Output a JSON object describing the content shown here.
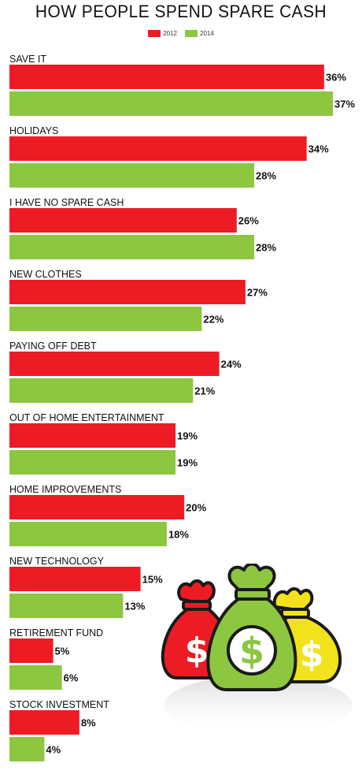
{
  "chart_data": {
    "type": "bar",
    "orientation": "horizontal",
    "title": "HOW PEOPLE SPEND SPARE CASH",
    "categories": [
      "SAVE IT",
      "HOLIDAYS",
      "I HAVE NO SPARE CASH",
      "NEW CLOTHES",
      "PAYING OFF DEBT",
      "OUT OF HOME ENTERTAINMENT",
      "HOME IMPROVEMENTS",
      "NEW TECHNOLOGY",
      "RETIREMENT FUND",
      "STOCK INVESTMENT"
    ],
    "series": [
      {
        "name": "2012",
        "color": "#ed1c24",
        "values": [
          36,
          34,
          26,
          27,
          24,
          19,
          20,
          15,
          5,
          8
        ]
      },
      {
        "name": "2014",
        "color": "#8dc63f",
        "values": [
          37,
          28,
          28,
          22,
          21,
          19,
          18,
          13,
          6,
          4
        ]
      }
    ],
    "value_suffix": "%",
    "xlim": [
      0,
      37
    ],
    "grid": false,
    "legend_position": "top-center"
  },
  "decoration": {
    "icon": "money-bags-icon",
    "bag_colors": [
      "#ed1c24",
      "#8dc63f",
      "#f2e21b"
    ]
  }
}
